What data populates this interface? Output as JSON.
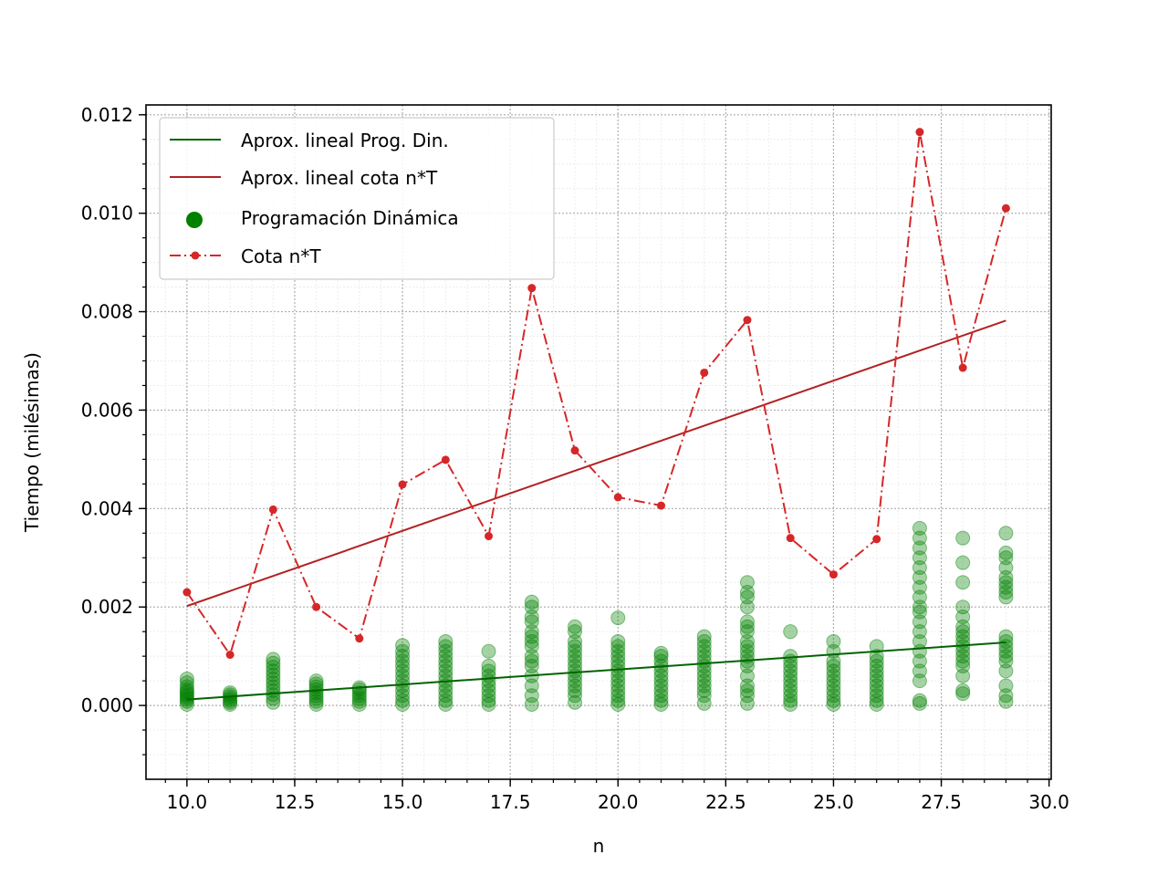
{
  "chart_data": {
    "type": "scatter",
    "title": "",
    "xlabel": "n",
    "ylabel": "Tiempo (milésimas)",
    "xlim": [
      9.05,
      30.05
    ],
    "ylim": [
      -0.0015,
      0.0122
    ],
    "xticks": [
      "10.0",
      "12.5",
      "15.0",
      "17.5",
      "20.0",
      "22.5",
      "25.0",
      "27.5",
      "30.0"
    ],
    "xtick_values": [
      10,
      12.5,
      15,
      17.5,
      20,
      22.5,
      25,
      27.5,
      30
    ],
    "yticks": [
      "0.000",
      "0.002",
      "0.004",
      "0.006",
      "0.008",
      "0.010",
      "0.012"
    ],
    "ytick_values": [
      0,
      0.002,
      0.004,
      0.006,
      0.008,
      0.01,
      0.012
    ],
    "grid": true,
    "legend_position": "upper-left",
    "legend": [
      {
        "label": "Aprox. lineal Prog. Din.",
        "kind": "line",
        "color": "#006400"
      },
      {
        "label": "Aprox. lineal cota n*T",
        "kind": "line",
        "color": "#b22222"
      },
      {
        "label": "Programación Dinámica",
        "kind": "scatter",
        "color": "#008000"
      },
      {
        "label": "Cota n*T",
        "kind": "dashdot-marker",
        "color": "#d62728"
      }
    ],
    "series": [
      {
        "name": "Aprox. lineal Prog. Din.",
        "type": "line",
        "color": "#006400",
        "x": [
          10,
          29
        ],
        "y": [
          0.00012,
          0.00128
        ]
      },
      {
        "name": "Aprox. lineal cota n*T",
        "type": "line",
        "color": "#b22222",
        "x": [
          10,
          29
        ],
        "y": [
          0.00202,
          0.00782
        ]
      },
      {
        "name": "Programación Dinámica",
        "type": "scatter",
        "color": "#008000",
        "points": [
          {
            "x": 10,
            "y": [
              2e-05,
              8e-05,
              0.00012,
              0.00016,
              0.0002,
              0.00024,
              0.00028,
              0.00032,
              0.00038,
              0.00046,
              0.00054
            ]
          },
          {
            "x": 11,
            "y": [
              2e-05,
              6e-05,
              0.0001,
              0.00014,
              0.00018,
              0.00022,
              0.00026
            ]
          },
          {
            "x": 12,
            "y": [
              6e-05,
              0.00014,
              0.00022,
              0.0003,
              0.00038,
              0.00046,
              0.00054,
              0.00062,
              0.0007,
              0.00078,
              0.00086,
              0.00094
            ]
          },
          {
            "x": 13,
            "y": [
              2e-05,
              8e-05,
              0.00014,
              0.0002,
              0.00026,
              0.00032,
              0.00038,
              0.00044,
              0.0005
            ]
          },
          {
            "x": 14,
            "y": [
              2e-05,
              8e-05,
              0.00014,
              0.0002,
              0.00026,
              0.00032,
              0.00036
            ]
          },
          {
            "x": 15,
            "y": [
              2e-05,
              0.0001,
              0.0002,
              0.0003,
              0.0004,
              0.0005,
              0.0006,
              0.0007,
              0.0008,
              0.0009,
              0.001,
              0.0011,
              0.00122
            ]
          },
          {
            "x": 16,
            "y": [
              2e-05,
              0.0001,
              0.0002,
              0.0003,
              0.0004,
              0.0005,
              0.0006,
              0.0007,
              0.0008,
              0.0009,
              0.001,
              0.0011,
              0.0012,
              0.0013
            ]
          },
          {
            "x": 17,
            "y": [
              2e-05,
              0.0001,
              0.0002,
              0.0003,
              0.0004,
              0.0005,
              0.0006,
              0.0007,
              0.0008,
              0.0011
            ]
          },
          {
            "x": 18,
            "y": [
              2e-05,
              0.0002,
              0.0004,
              0.0006,
              0.0008,
              0.0009,
              0.001,
              0.0012,
              0.0013,
              0.0014,
              0.0015,
              0.0017,
              0.0018,
              0.002,
              0.0021
            ]
          },
          {
            "x": 19,
            "y": [
              6e-05,
              0.0002,
              0.0003,
              0.0004,
              0.0005,
              0.0006,
              0.0007,
              0.0008,
              0.0009,
              0.001,
              0.0011,
              0.0012,
              0.0013,
              0.0015,
              0.0016
            ]
          },
          {
            "x": 20,
            "y": [
              2e-05,
              0.0001,
              0.0002,
              0.0003,
              0.0004,
              0.0005,
              0.0006,
              0.0007,
              0.0008,
              0.0009,
              0.001,
              0.0011,
              0.0012,
              0.0013,
              0.00178
            ]
          },
          {
            "x": 21,
            "y": [
              2e-05,
              0.0001,
              0.0002,
              0.0003,
              0.0004,
              0.0005,
              0.0006,
              0.0007,
              0.0008,
              0.0009,
              0.001,
              0.00106
            ]
          },
          {
            "x": 22,
            "y": [
              4e-05,
              0.0002,
              0.0003,
              0.0004,
              0.0005,
              0.0006,
              0.0007,
              0.0008,
              0.0009,
              0.001,
              0.0011,
              0.0012,
              0.0013,
              0.0014
            ]
          },
          {
            "x": 23,
            "y": [
              4e-05,
              0.0002,
              0.0003,
              0.0004,
              0.0006,
              0.0008,
              0.0009,
              0.001,
              0.0011,
              0.0012,
              0.0013,
              0.0015,
              0.0016,
              0.0017,
              0.002,
              0.0022,
              0.0023,
              0.0025
            ]
          },
          {
            "x": 24,
            "y": [
              2e-05,
              0.0001,
              0.0002,
              0.0003,
              0.0004,
              0.0005,
              0.0006,
              0.0007,
              0.0008,
              0.0009,
              0.001,
              0.0015
            ]
          },
          {
            "x": 25,
            "y": [
              2e-05,
              0.0001,
              0.0002,
              0.0003,
              0.0004,
              0.0005,
              0.0006,
              0.0007,
              0.0008,
              0.0009,
              0.0011,
              0.0013
            ]
          },
          {
            "x": 26,
            "y": [
              2e-05,
              0.0001,
              0.0002,
              0.0003,
              0.0004,
              0.0005,
              0.0006,
              0.0007,
              0.0008,
              0.0009,
              0.001,
              0.0012
            ]
          },
          {
            "x": 27,
            "y": [
              4e-05,
              0.0001,
              0.0005,
              0.0007,
              0.0009,
              0.0011,
              0.0013,
              0.0015,
              0.0017,
              0.0019,
              0.002,
              0.0022,
              0.0024,
              0.0026,
              0.0028,
              0.003,
              0.0032,
              0.0034,
              0.0036
            ]
          },
          {
            "x": 28,
            "y": [
              0.00024,
              0.0003,
              0.0006,
              0.0008,
              0.0009,
              0.001,
              0.0011,
              0.0012,
              0.0013,
              0.0014,
              0.0015,
              0.0016,
              0.0018,
              0.002,
              0.0025,
              0.0029,
              0.0034
            ]
          },
          {
            "x": 29,
            "y": [
              8e-05,
              0.0002,
              0.0004,
              0.0007,
              0.0009,
              0.001,
              0.0011,
              0.0012,
              0.0013,
              0.0014,
              0.0022,
              0.0023,
              0.0024,
              0.0025,
              0.0026,
              0.0028,
              0.003,
              0.0031,
              0.0035
            ]
          }
        ]
      },
      {
        "name": "Cota n*T",
        "type": "line",
        "style": "dashdot",
        "marker": "circle",
        "color": "#d62728",
        "x": [
          10,
          11,
          12,
          13,
          14,
          15,
          16,
          17,
          18,
          19,
          20,
          21,
          22,
          23,
          24,
          25,
          26,
          27,
          28,
          29
        ],
        "y": [
          0.0023,
          0.00103,
          0.00398,
          0.002,
          0.00136,
          0.00449,
          0.00499,
          0.00344,
          0.00848,
          0.00518,
          0.00423,
          0.00406,
          0.00676,
          0.00783,
          0.0034,
          0.00266,
          0.00338,
          0.01165,
          0.00686,
          0.0101
        ]
      }
    ]
  }
}
